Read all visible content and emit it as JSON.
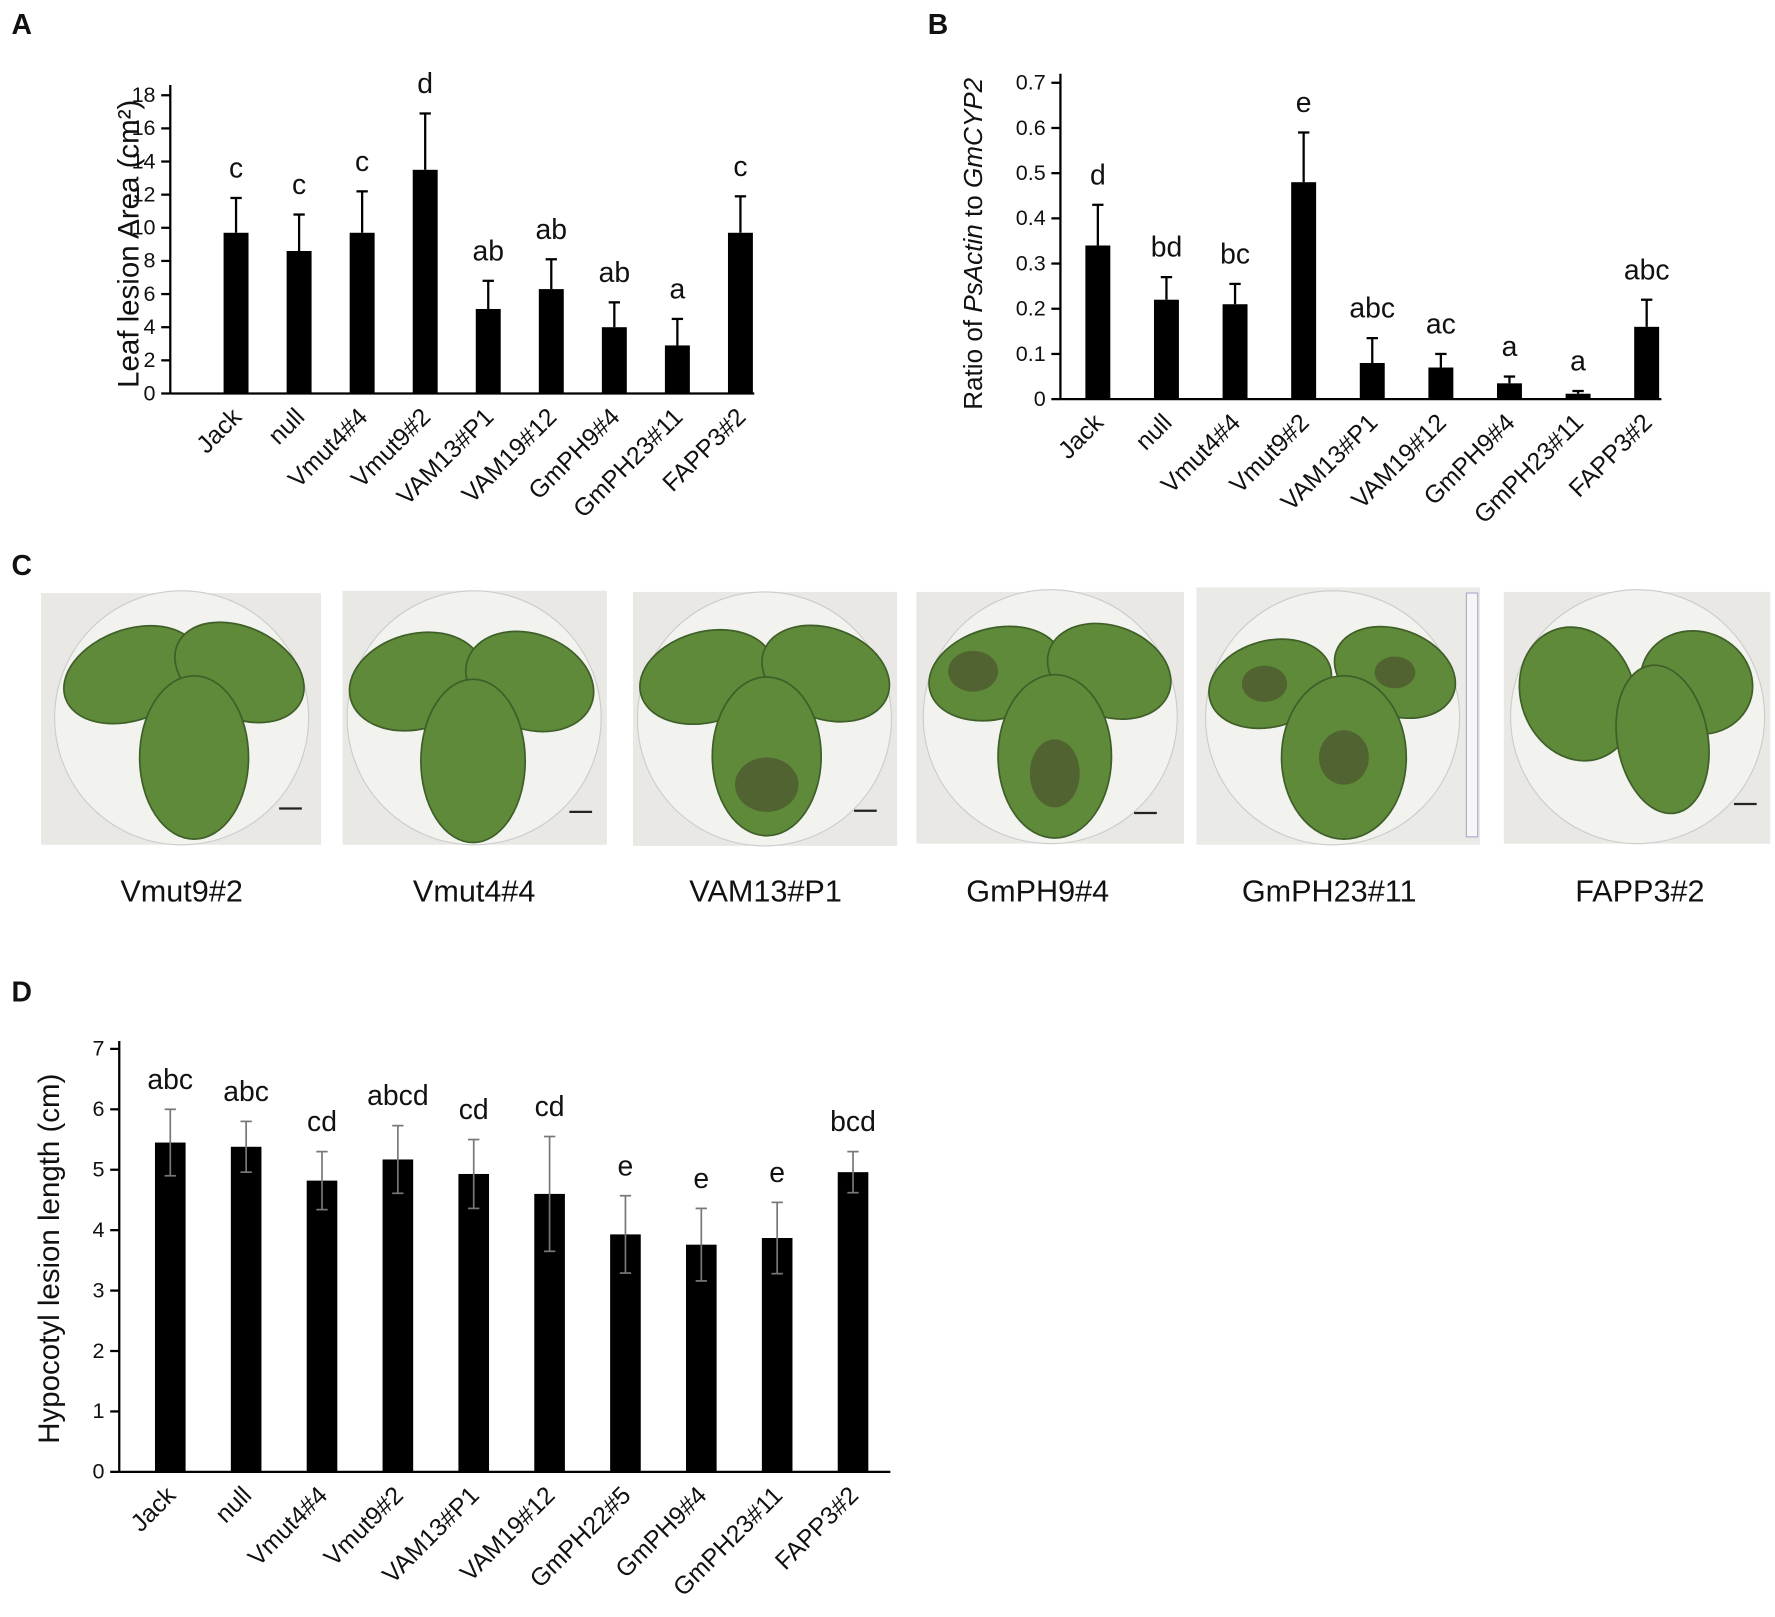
{
  "chart_data": [
    {
      "type": "bar",
      "panel": "A",
      "ylabel": "Leaf lesion Area (cm²)",
      "categories": [
        "Jack",
        "null",
        "Vmut4#4",
        "Vmut9#2",
        "VAM13#P1",
        "VAM19#12",
        "GmPH9#4",
        "GmPH23#11",
        "FAPP3#2"
      ],
      "values": [
        9.7,
        8.6,
        9.7,
        13.5,
        5.1,
        6.3,
        4.0,
        2.9,
        9.7
      ],
      "errors": [
        2.1,
        2.2,
        2.5,
        3.4,
        1.7,
        1.8,
        1.5,
        1.6,
        2.2
      ],
      "annotations": [
        "c",
        "c",
        "c",
        "d",
        "ab",
        "ab",
        "ab",
        "a",
        "c"
      ],
      "color": "#000000",
      "ylim": [
        0,
        18
      ],
      "yticks": [
        0,
        2,
        4,
        6,
        8,
        10,
        12,
        14,
        16,
        18
      ]
    },
    {
      "type": "bar",
      "panel": "B",
      "ylabel_parts": [
        "Ratio of ",
        "PsActin",
        " to ",
        "GmCYP2"
      ],
      "categories": [
        "Jack",
        "null",
        "Vmut4#4",
        "Vmut9#2",
        "VAM13#P1",
        "VAM19#12",
        "GmPH9#4",
        "GmPH23#11",
        "FAPP3#2"
      ],
      "values": [
        0.34,
        0.22,
        0.21,
        0.48,
        0.08,
        0.07,
        0.035,
        0.012,
        0.16
      ],
      "errors": [
        0.09,
        0.05,
        0.045,
        0.11,
        0.055,
        0.03,
        0.015,
        0.006,
        0.06
      ],
      "annotations": [
        "d",
        "bd",
        "bc",
        "e",
        "abc",
        "ac",
        "a",
        "a",
        "abc"
      ],
      "color": "#000000",
      "ylim": [
        0,
        0.7
      ],
      "yticks": [
        0,
        0.1,
        0.2,
        0.3,
        0.4,
        0.5,
        0.6,
        0.7
      ]
    },
    {
      "type": "bar",
      "panel": "D",
      "ylabel": "Hypocotyl lesion length (cm)",
      "categories": [
        "Jack",
        "null",
        "Vmut4#4",
        "Vmut9#2",
        "VAM13#P1",
        "VAM19#12",
        "GmPH22#5",
        "GmPH9#4",
        "GmPH23#11",
        "FAPP3#2"
      ],
      "values": [
        5.45,
        5.38,
        4.82,
        5.17,
        4.93,
        4.6,
        3.93,
        3.76,
        3.87,
        4.96
      ],
      "errors": [
        0.55,
        0.42,
        0.48,
        0.56,
        0.57,
        0.95,
        0.64,
        0.6,
        0.59,
        0.34
      ],
      "annotations": [
        "abc",
        "abc",
        "cd",
        "abcd",
        "cd",
        "cd",
        "e",
        "e",
        "e",
        "bcd"
      ],
      "color": "#000000",
      "ylim": [
        0,
        7
      ],
      "yticks": [
        0,
        1,
        2,
        3,
        4,
        5,
        6,
        7
      ]
    }
  ],
  "panel_c": {
    "panel": "C",
    "labels": [
      "Vmut9#2",
      "Vmut4#4",
      "VAM13#P1",
      "GmPH9#4",
      "GmPH23#11",
      "FAPP3#2"
    ]
  }
}
